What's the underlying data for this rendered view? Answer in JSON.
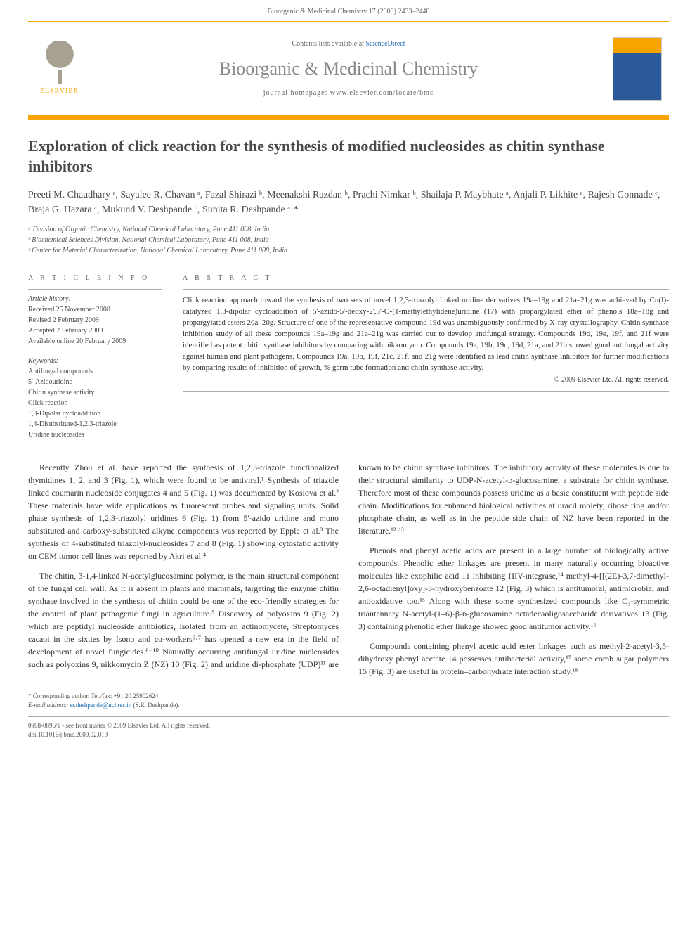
{
  "page_header": "Bioorganic & Medicinal Chemistry 17 (2009) 2433–2440",
  "journal_box": {
    "publisher": "ELSEVIER",
    "contents_prefix": "Contents lists available at ",
    "contents_link": "ScienceDirect",
    "journal_name": "Bioorganic & Medicinal Chemistry",
    "homepage_prefix": "journal homepage: ",
    "homepage_url": "www.elsevier.com/locate/bmc"
  },
  "article": {
    "title": "Exploration of click reaction for the synthesis of modified nucleosides as chitin synthase inhibitors",
    "authors_html": "Preeti M. Chaudhary ᵃ, Sayalee R. Chavan ᵃ, Fazal Shirazi ᵇ, Meenakshi Razdan ᵇ, Prachi Nimkar ᵇ, Shailaja P. Maybhate ᵃ, Anjali P. Likhite ᵃ, Rajesh Gonnade ᶜ, Braja G. Hazara ᵃ, Mukund V. Deshpande ᵇ, Sunita R. Deshpande ᵃ·*",
    "affiliations": [
      "ᵃ Division of Organic Chemistry, National Chemical Laboratory, Pune 411 008, India",
      "ᵇ Biochemical Sciences Division, National Chemical Laboratory, Pune 411 008, India",
      "ᶜ Center for Material Characterization, National Chemical Laboratory, Pune 411 008, India"
    ]
  },
  "info": {
    "heading": "A R T I C L E   I N F O",
    "history_label": "Article history:",
    "history": [
      "Received 25 November 2008",
      "Revised 2 February 2009",
      "Accepted 2 February 2009",
      "Available online 20 February 2009"
    ],
    "keywords_label": "Keywords:",
    "keywords": [
      "Antifungal compounds",
      "5'-Azidouridine",
      "Chitin synthase activity",
      "Click reaction",
      "1,3-Dipolar cycloaddition",
      "1,4-Disubstituted-1,2,3-triazole",
      "Uridine nucleosides"
    ]
  },
  "abstract": {
    "heading": "A B S T R A C T",
    "body": "Click reaction approach toward the synthesis of two sets of novel 1,2,3-triazolyl linked uridine derivatives 19a–19g and 21a–21g was achieved by Cu(I)-catalyzed 1,3-dipolar cycloaddition of 5'-azido-5'-deoxy-2',3'-O-(1-methylethylidene)uridine (17) with propargylated ether of phenols 18a–18g and propargylated esters 20a–20g. Structure of one of the representative compound 19d was unambiguously confirmed by X-ray crystallography. Chitin synthase inhibition study of all these compounds 19a–19g and 21a–21g was carried out to develop antifungal strategy. Compounds 19d, 19e, 19f, and 21f were identified as potent chitin synthase inhibitors by comparing with nikkomycin. Compounds 19a, 19b, 19c, 19d, 21a, and 21b showed good antifungal activity against human and plant pathogens. Compounds 19a, 19b, 19f, 21c, 21f, and 21g were identified as lead chitin synthase inhibitors for further modifications by comparing results of inhibition of growth, % germ tube formation and chitin synthase activity.",
    "copyright": "© 2009 Elsevier Ltd. All rights reserved."
  },
  "body": {
    "p1": "Recently Zhou et al. have reported the synthesis of 1,2,3-triazole functionalized thymidines 1, 2, and 3 (Fig. 1), which were found to be antiviral.¹ Synthesis of triazole linked coumarin nucleoside conjugates 4 and 5 (Fig. 1) was documented by Kosiova et al.² These materials have wide applications as fluorescent probes and signaling units. Solid phase synthesis of 1,2,3-triazolyl uridines 6 (Fig. 1) from 5'-azido uridine and mono substituted and carboxy-substituted alkyne components was reported by Epple et al.³ The synthesis of 4-substituted triazolyl-nucleosides 7 and 8 (Fig. 1) showing cytostatic activity on CEM tumor cell lines was reported by Akri et al.⁴",
    "p2": "The chitin, β-1,4-linked N-acetylglucosamine polymer, is the main structural component of the fungal cell wall. As it is absent in plants and mammals, targeting the enzyme chitin synthase involved in the synthesis of chitin could be one of the eco-friendly strategies for the control of plant pathogenic fungi in agriculture.⁵ Discovery of polyoxins 9 (Fig. 2) which are peptidyl nucleoside antibiotics, isolated from an actinomycete, Streptomyces cacaoi in the sixties by Isono and co-workers⁶·⁷ has opened a new era in the field of development of novel fungicides.⁸⁻¹⁰ Naturally occurring antifungal uridine nucleosides such as polyoxins 9, nikkomycin Z (NZ) 10 (Fig. 2) and uridine di-phosphate (UDP)¹¹ are known to be chitin synthase inhibitors. The inhibitory activity of these molecules is due to their structural similarity to UDP-N-acetyl-ᴅ-glucosamine, a substrate for chitin synthase. Therefore most of these compounds possess uridine as a basic constituent with peptide side chain. Modifications for enhanced biological activities at uracil moiety, ribose ring and/or phosphate chain, as well as in the peptide side chain of NZ have been reported in the literature.¹²·¹³",
    "p3": "Phenols and phenyl acetic acids are present in a large number of biologically active compounds. Phenolic ether linkages are present in many naturally occurring bioactive molecules like exophilic acid 11 inhibiting HIV-integrase,¹⁴ methyl-4-[[(2E)-3,7-dimethyl-2,6-octadienyl]oxy]-3-hydroxybenzoate 12 (Fig. 3) which is antitumoral, antimicrobial and antioxidative too.¹⁵ Along with these some synthesized compounds like C₃-symmetric triantennary N-acetyl-(1–6)-β-ᴅ-glucosamine octadecaoligosaccharide derivatives 13 (Fig. 3) containing phenolic ether linkage showed good antitumor activity.¹⁶",
    "p4": "Compounds containing phenyl acetic acid ester linkages such as methyl-2-acetyl-3,5-dihydroxy phenyl acetate 14 possesses antibacterial activity,¹⁷ some comb sugar polymers 15 (Fig. 3) are useful in protein–carbohydrate interaction study.¹⁸"
  },
  "corresponding": {
    "line1": "* Corresponding author. Tel./fax: +91 20 25902624.",
    "line2_label": "E-mail address: ",
    "email": "sr.deshpande@ncl.res.in",
    "line2_suffix": " (S.R. Deshpande)."
  },
  "footer": {
    "left1": "0968-0896/$ - see front matter © 2009 Elsevier Ltd. All rights reserved.",
    "left2": "doi:10.1016/j.bmc.2009.02.019"
  },
  "colors": {
    "accent": "#f7a400",
    "link": "#1a6bb3",
    "heading": "#4a4a4a",
    "journal_grey": "#888888"
  }
}
